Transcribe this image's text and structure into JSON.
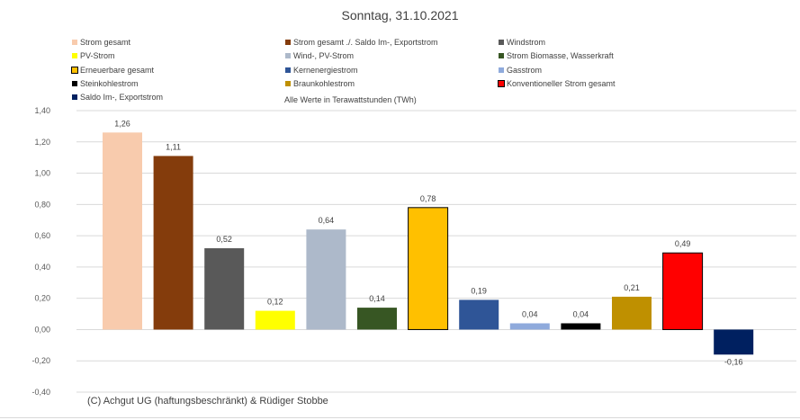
{
  "chart_data": {
    "type": "bar",
    "title": "Sonntag, 31.10.2021",
    "note": "Alle Werte in Terawattstunden (TWh)",
    "copyright": "(C) Achgut UG (haftungsbeschränkt) & Rüdiger Stobbe",
    "ylim": [
      -0.4,
      1.4
    ],
    "yticks": [
      "1,40",
      "1,20",
      "1,00",
      "0,80",
      "0,60",
      "0,40",
      "0,20",
      "0,00",
      "-0,20",
      "-0,40"
    ],
    "ytick_values": [
      1.4,
      1.2,
      1.0,
      0.8,
      0.6,
      0.4,
      0.2,
      0.0,
      -0.2,
      -0.4
    ],
    "grid": true,
    "legend_position": "top",
    "series": [
      {
        "name": "Strom gesamt",
        "value": 1.26,
        "label": "1,26",
        "color": "#F8CBAD"
      },
      {
        "name": "Strom gesamt ./. Saldo Im-, Exportstrom",
        "value": 1.11,
        "label": "1,11",
        "color": "#843C0C"
      },
      {
        "name": "Windstrom",
        "value": 0.52,
        "label": "0,52",
        "color": "#595959"
      },
      {
        "name": "PV-Strom",
        "value": 0.12,
        "label": "0,12",
        "color": "#FFFF00"
      },
      {
        "name": "Wind-, PV-Strom",
        "value": 0.64,
        "label": "0,64",
        "color": "#ADB9CA"
      },
      {
        "name": "Strom Biomasse, Wasserkraft",
        "value": 0.14,
        "label": "0,14",
        "color": "#375623"
      },
      {
        "name": "Erneuerbare gesamt",
        "value": 0.78,
        "label": "0,78",
        "color": "#FFC000",
        "outline": "#000000"
      },
      {
        "name": "Kernenergiestrom",
        "value": 0.19,
        "label": "0,19",
        "color": "#2F5597"
      },
      {
        "name": "Gasstrom",
        "value": 0.04,
        "label": "0,04",
        "color": "#8FAADC"
      },
      {
        "name": "Steinkohlestrom",
        "value": 0.04,
        "label": "0,04",
        "color": "#000000"
      },
      {
        "name": "Braunkohlestrom",
        "value": 0.21,
        "label": "0,21",
        "color": "#BF9000"
      },
      {
        "name": "Konventioneller Strom gesamt",
        "value": 0.49,
        "label": "0,49",
        "color": "#FF0000",
        "outline": "#000000"
      },
      {
        "name": "Saldo Im-, Exportstrom",
        "value": -0.16,
        "label": "-0,16",
        "color": "#002060"
      }
    ]
  }
}
